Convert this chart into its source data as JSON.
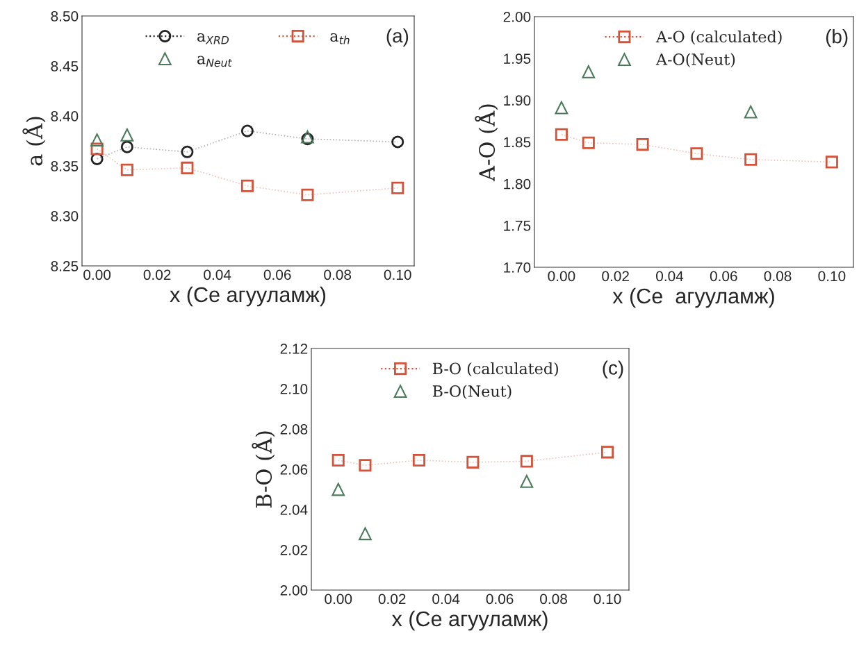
{
  "chart_data": [
    {
      "type": "line",
      "xlabel": "x (Ce агууламж)",
      "ylabel": "a (Å)",
      "x": [
        0,
        0.01,
        0.03,
        0.05,
        0.07,
        0.1
      ],
      "xlim": [
        -0.005,
        0.1055
      ],
      "xticks": [
        {
          "value": 0,
          "label": "0.00"
        },
        {
          "value": 0.02,
          "label": "0.02"
        },
        {
          "value": 0.04,
          "label": "0.04"
        },
        {
          "value": 0.06,
          "label": "0.06"
        },
        {
          "value": 0.08,
          "label": "0.08"
        },
        {
          "value": 0.1,
          "label": "0.10"
        }
      ],
      "ylim": [
        8.25,
        8.5
      ],
      "yticks": [
        {
          "value": 8.25,
          "label": "8.25"
        },
        {
          "value": 8.3,
          "label": "8.30"
        },
        {
          "value": 8.35,
          "label": "8.35"
        },
        {
          "value": 8.4,
          "label": "8.40"
        },
        {
          "value": 8.45,
          "label": "8.45"
        },
        {
          "value": 8.5,
          "label": "8.50"
        }
      ],
      "legend": "top",
      "annotations": [
        "(a)"
      ],
      "series": [
        {
          "name": "a$_{XRD}$",
          "marker": "circle",
          "line_style": "dotted",
          "color": "#222222",
          "values": [
            8.357,
            8.369,
            8.364,
            8.385,
            8.377,
            8.374
          ]
        },
        {
          "name": "a$_{Neut}$",
          "type": "scatter",
          "marker": "triangle",
          "color": "#4a7a5a",
          "x": [
            0,
            0.01,
            0.07
          ],
          "values": [
            8.376,
            8.381,
            8.379
          ]
        },
        {
          "name": "a$_{th}$",
          "marker": "square",
          "line_style": "dotted",
          "color": "#d0533a",
          "values": [
            8.367,
            8.346,
            8.348,
            8.33,
            8.321,
            8.328
          ]
        }
      ]
    },
    {
      "type": "line",
      "xlabel": "x (Ce  агууламж)",
      "ylabel": "A-O (Å)",
      "x": [
        0,
        0.01,
        0.03,
        0.05,
        0.07,
        0.1
      ],
      "xlim": [
        -0.01,
        0.108
      ],
      "xticks": [
        {
          "value": 0,
          "label": "0.00"
        },
        {
          "value": 0.02,
          "label": "0.02"
        },
        {
          "value": 0.04,
          "label": "0.04"
        },
        {
          "value": 0.06,
          "label": "0.06"
        },
        {
          "value": 0.08,
          "label": "0.08"
        },
        {
          "value": 0.1,
          "label": "0.10"
        }
      ],
      "ylim": [
        1.7,
        2.0
      ],
      "yticks": [
        {
          "value": 1.7,
          "label": "1.70"
        },
        {
          "value": 1.75,
          "label": "1.75"
        },
        {
          "value": 1.8,
          "label": "1.80"
        },
        {
          "value": 1.85,
          "label": "1.85"
        },
        {
          "value": 1.9,
          "label": "1.90"
        },
        {
          "value": 1.95,
          "label": "1.95"
        },
        {
          "value": 2.0,
          "label": "2.00"
        }
      ],
      "legend": "top",
      "annotations": [
        "(b)"
      ],
      "series": [
        {
          "name": "A-O (calculated)",
          "marker": "square",
          "line_style": "dotted",
          "color": "#d0533a",
          "values": [
            1.859,
            1.849,
            1.847,
            1.836,
            1.829,
            1.826
          ]
        },
        {
          "name": "A-O(Neut)",
          "type": "scatter",
          "marker": "triangle",
          "color": "#4a7a5a",
          "x": [
            0,
            0.01,
            0.07
          ],
          "values": [
            1.891,
            1.934,
            1.886
          ]
        }
      ]
    },
    {
      "type": "line",
      "xlabel": "x (Ce агууламж)",
      "ylabel": "B-O (Å)",
      "x": [
        0,
        0.01,
        0.03,
        0.05,
        0.07,
        0.1
      ],
      "xlim": [
        -0.01,
        0.108
      ],
      "xticks": [
        {
          "value": 0,
          "label": "0.00"
        },
        {
          "value": 0.02,
          "label": "0.02"
        },
        {
          "value": 0.04,
          "label": "0.04"
        },
        {
          "value": 0.06,
          "label": "0.06"
        },
        {
          "value": 0.08,
          "label": "0.08"
        },
        {
          "value": 0.1,
          "label": "0.10"
        }
      ],
      "ylim": [
        2.0,
        2.12
      ],
      "yticks": [
        {
          "value": 2.0,
          "label": "2.00"
        },
        {
          "value": 2.02,
          "label": "2.02"
        },
        {
          "value": 2.04,
          "label": "2.04"
        },
        {
          "value": 2.06,
          "label": "2.06"
        },
        {
          "value": 2.08,
          "label": "2.08"
        },
        {
          "value": 2.1,
          "label": "2.10"
        },
        {
          "value": 2.12,
          "label": "2.12"
        }
      ],
      "legend": "top",
      "annotations": [
        "(c)"
      ],
      "series": [
        {
          "name": "B-O (calculated)",
          "marker": "square",
          "line_style": "dotted",
          "color": "#d0533a",
          "values": [
            2.0645,
            2.062,
            2.0645,
            2.0635,
            2.064,
            2.0685
          ]
        },
        {
          "name": "B-O(Neut)",
          "type": "scatter",
          "marker": "triangle",
          "color": "#4a7a5a",
          "x": [
            0,
            0.01,
            0.07
          ],
          "values": [
            2.05,
            2.028,
            2.054
          ]
        }
      ]
    }
  ]
}
